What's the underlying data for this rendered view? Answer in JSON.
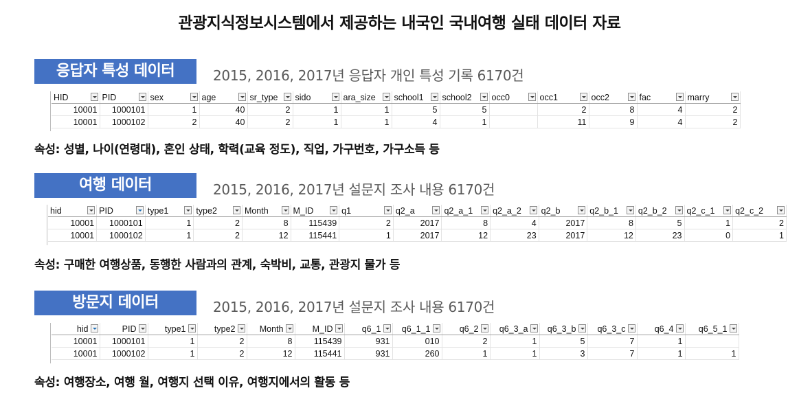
{
  "title": "관광지식정보시스템에서 제공하는 내국인 국내여행 실태 데이터 자료",
  "attr_prefix": "속성:",
  "sections": [
    {
      "label": "응답자 특성 데이터",
      "desc": "2015, 2016, 2017년 응답자 개인 특성 기록 6170건",
      "headers": [
        "HID",
        "PID",
        "sex",
        "age",
        "sr_type",
        "sido",
        "ara_size",
        "school1",
        "school2",
        "occ0",
        "occ1",
        "occ2",
        "fac",
        "marry"
      ],
      "rows": [
        [
          "10001",
          "1000101",
          "1",
          "40",
          "2",
          "1",
          "1",
          "5",
          "5",
          "",
          "2",
          "8",
          "4",
          "2"
        ],
        [
          "10001",
          "1000102",
          "2",
          "40",
          "2",
          "1",
          "1",
          "4",
          "1",
          "",
          "11",
          "9",
          "4",
          "2"
        ]
      ],
      "attributes": "성별, 나이(연령대), 혼인 상태, 학력(교육 정도), 직업, 가구번호, 가구소득 등"
    },
    {
      "label": "여행 데이터",
      "desc": "2015, 2016, 2017년 설문지 조사 내용 6170건",
      "headers": [
        "hid",
        "PID",
        "type1",
        "type2",
        "Month",
        "M_ID",
        "q1",
        "q2_a",
        "q2_a_1",
        "q2_a_2",
        "q2_b",
        "q2_b_1",
        "q2_b_2",
        "q2_c_1",
        "q2_c_2"
      ],
      "rows": [
        [
          "10001",
          "1000101",
          "1",
          "2",
          "8",
          "115439",
          "2",
          "2017",
          "8",
          "4",
          "2017",
          "8",
          "5",
          "1",
          "2"
        ],
        [
          "10001",
          "1000102",
          "1",
          "2",
          "12",
          "115441",
          "1",
          "2017",
          "12",
          "23",
          "2017",
          "12",
          "23",
          "0",
          "1"
        ]
      ],
      "attributes": "구매한 여행상품, 동행한 사람과의 관계, 숙박비, 교통, 관광지 물가 등"
    },
    {
      "label": "방문지 데이터",
      "desc": "2015, 2016, 2017년 설문지 조사 내용 6170건",
      "headers": [
        "hid",
        "PID",
        "type1",
        "type2",
        "Month",
        "M_ID",
        "q6_1",
        "q6_1_1",
        "q6_2",
        "q6_3_a",
        "q6_3_b",
        "q6_3_c",
        "q6_4",
        "q6_5_1"
      ],
      "rows": [
        [
          "10001",
          "1000101",
          "1",
          "2",
          "8",
          "115439",
          "931",
          "010",
          "2",
          "1",
          "5",
          "7",
          "1",
          ""
        ],
        [
          "10001",
          "1000102",
          "1",
          "2",
          "12",
          "115441",
          "931",
          "260",
          "1",
          "1",
          "3",
          "7",
          "1",
          "1"
        ]
      ],
      "attributes": "여행장소, 여행 월, 여행지 선택 이유, 여행지에서의 활동 등"
    }
  ]
}
